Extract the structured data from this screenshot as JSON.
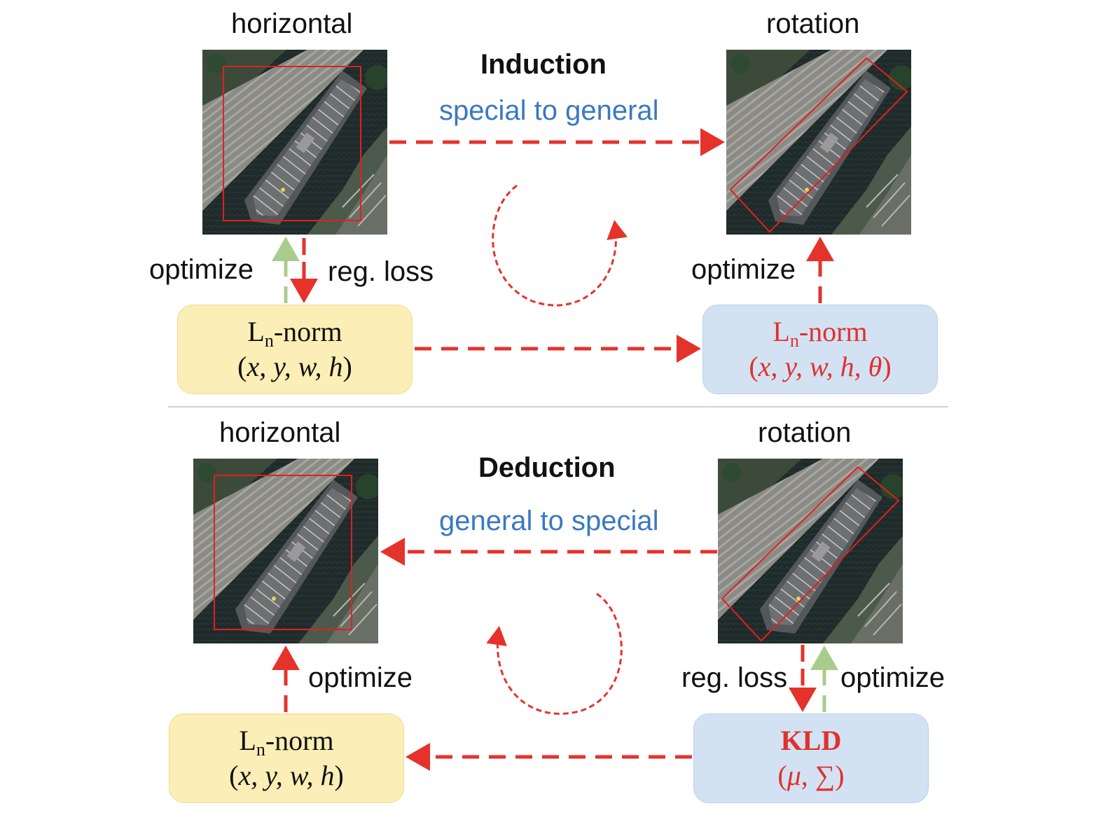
{
  "induction": {
    "left_caption": "horizontal",
    "right_caption": "rotation",
    "title": "Induction",
    "subtitle": "special to general",
    "label_optimize_left": "optimize",
    "label_regloss_left": "reg. loss",
    "label_optimize_right": "optimize",
    "left_box": {
      "line1_main": "L",
      "line1_sub": "n",
      "line1_rest": "-norm",
      "line2_open": "(",
      "line2_math": "x, y, w, h",
      "line2_close": ")"
    },
    "right_box": {
      "line1_main": "L",
      "line1_sub": "n",
      "line1_rest": "-norm",
      "line2_open": "(",
      "line2_math": "x, y, w, h, θ",
      "line2_close": ")"
    }
  },
  "deduction": {
    "left_caption": "horizontal",
    "right_caption": "rotation",
    "title": "Deduction",
    "subtitle": "general to special",
    "label_optimize_left": "optimize",
    "label_regloss_right": "reg. loss",
    "label_optimize_right": "optimize",
    "left_box": {
      "line1_main": "L",
      "line1_sub": "n",
      "line1_rest": "-norm",
      "line2_open": "(",
      "line2_math": "x, y, w, h",
      "line2_close": ")"
    },
    "right_box": {
      "line1": "KLD",
      "line2_open": "(",
      "line2_math": "μ, ∑",
      "line2_close": ")"
    }
  },
  "colors": {
    "arrow_red": "#e5322b",
    "arrow_green": "#a9cc8c",
    "box_yellow": "#fbeeb6",
    "box_blue": "#d3e2f2",
    "subtitle_blue": "#3a78c2",
    "bbox_red": "#e02020"
  }
}
